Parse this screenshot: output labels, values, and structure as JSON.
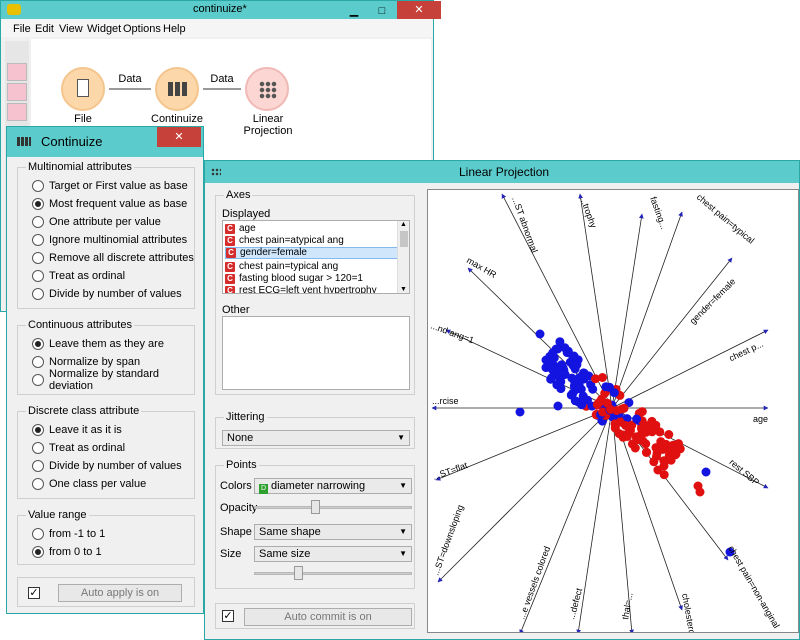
{
  "main_window": {
    "title": "continuize*",
    "menu": [
      "File",
      "Edit",
      "View",
      "Widget",
      "Options",
      "Help"
    ],
    "nodes": [
      {
        "label": "File"
      },
      {
        "label": "Continuize"
      },
      {
        "label": "Linear Projection"
      }
    ],
    "links": [
      {
        "label": "Data"
      },
      {
        "label": "Data"
      }
    ]
  },
  "continuize": {
    "title": "Continuize",
    "multinomial": {
      "title": "Multinomial attributes",
      "options": [
        "Target or First value as base",
        "Most frequent value as base",
        "One attribute per value",
        "Ignore multinomial attributes",
        "Remove all discrete attributes",
        "Treat as ordinal",
        "Divide by number of values"
      ],
      "selected": 1
    },
    "continuous": {
      "title": "Continuous attributes",
      "options": [
        "Leave them as they are",
        "Normalize by span",
        "Normalize by standard deviation"
      ],
      "selected": 0
    },
    "discrete_class": {
      "title": "Discrete class attribute",
      "options": [
        "Leave it as it is",
        "Treat as ordinal",
        "Divide by number of values",
        "One class per value"
      ],
      "selected": 0
    },
    "value_range": {
      "title": "Value range",
      "options": [
        "from -1 to 1",
        "from 0 to 1"
      ],
      "selected": 1
    },
    "auto_apply": {
      "checked": true,
      "label": "Auto apply is on"
    }
  },
  "linear_projection": {
    "title": "Linear Projection",
    "axes": {
      "title": "Axes",
      "displayed_label": "Displayed",
      "displayed_items": [
        "age",
        "chest pain=atypical ang",
        "gender=female",
        "chest pain=typical ang",
        "fasting blood sugar > 120=1",
        "rest ECG=left vent hypertrophy"
      ],
      "selected_index": 2,
      "type_glyph": "C",
      "other_label": "Other"
    },
    "jittering": {
      "title": "Jittering",
      "value": "None"
    },
    "points": {
      "title": "Points",
      "colors_label": "Colors",
      "colors_value": "diameter narrowing",
      "colors_glyph": "D",
      "opacity_label": "Opacity",
      "opacity_level": 0.38,
      "shape_label": "Shape",
      "shape_value": "Same shape",
      "size_label": "Size",
      "size_value": "Same size",
      "size_level": 0.27
    },
    "auto_commit": {
      "checked": true,
      "label": "Auto commit is on"
    },
    "plot": {
      "axis_color": "#2424b8",
      "class_colors": {
        "0": "#1414e0",
        "1": "#e01010"
      },
      "anchors": [
        {
          "label": "age"
        },
        {
          "label": "rest SBP"
        },
        {
          "label": "chest pain=non-anginal"
        },
        {
          "label": "cholesterol"
        },
        {
          "label": "thal=..."
        },
        {
          "label": "...defect"
        },
        {
          "label": "...e vessels colored"
        },
        {
          "label": "...ST=downsloping"
        },
        {
          "label": "...ST=flat"
        },
        {
          "label": "...rcise"
        },
        {
          "label": "...nd ang=1"
        },
        {
          "label": "max HR"
        },
        {
          "label": "...ST abnormal"
        },
        {
          "label": "...trophy"
        },
        {
          "label": "fasting..."
        },
        {
          "label": "chest pain=typical"
        },
        {
          "label": "gender=female"
        },
        {
          "label": "chest p..."
        }
      ]
    }
  }
}
